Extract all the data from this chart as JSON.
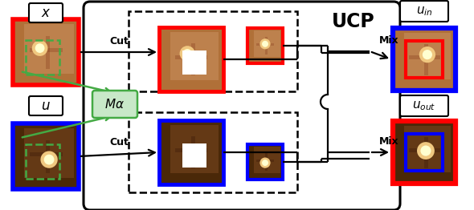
{
  "title": "UCP",
  "label_x": "x",
  "label_u": "u",
  "label_ma": "M\\alpha",
  "label_cut": "Cut",
  "label_mix": "Mix",
  "label_uin": "u_{in}",
  "label_uout": "u_{out}",
  "color_red": "#FF0000",
  "color_blue": "#0000FF",
  "color_green_border": "#44AA44",
  "color_green_fill": "#C8E8C8",
  "color_black": "#000000",
  "color_white": "#FFFFFF",
  "retina_light_base": "#B87040",
  "retina_light_mid": "#C89060",
  "retina_light_vein": "#8B4020",
  "retina_dark_base": "#4A2810",
  "retina_dark_mid": "#7A5030",
  "retina_bright": "#F0C880",
  "retina_bright2": "#FFE090"
}
